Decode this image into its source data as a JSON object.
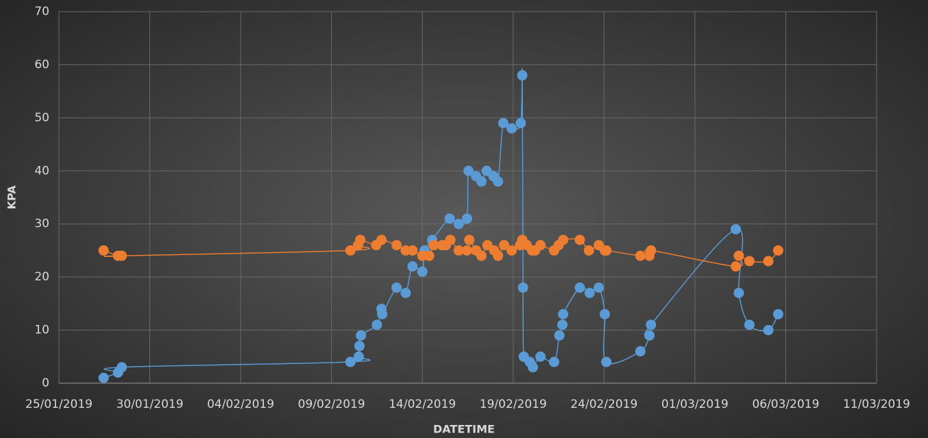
{
  "chart_data": {
    "type": "scatter-line",
    "xlabel": "DATETIME",
    "ylabel": "KPA",
    "xlim": [
      "2019-01-25",
      "2019-03-11"
    ],
    "xticks": [
      {
        "value": "2019-01-25",
        "label": "25/01/2019"
      },
      {
        "value": "2019-01-30",
        "label": "30/01/2019"
      },
      {
        "value": "2019-02-04",
        "label": "04/02/2019"
      },
      {
        "value": "2019-02-09",
        "label": "09/02/2019"
      },
      {
        "value": "2019-02-14",
        "label": "14/02/2019"
      },
      {
        "value": "2019-02-19",
        "label": "19/02/2019"
      },
      {
        "value": "2019-02-24",
        "label": "24/02/2019"
      },
      {
        "value": "2019-03-01",
        "label": "01/03/2019"
      },
      {
        "value": "2019-03-06",
        "label": "06/03/2019"
      },
      {
        "value": "2019-03-11",
        "label": "11/03/2019"
      }
    ],
    "ylim": [
      0,
      70
    ],
    "yticks": [
      0,
      10,
      20,
      30,
      40,
      50,
      60,
      70
    ],
    "grid": true,
    "series": [
      {
        "color": "#5b9bd5",
        "x": [
          "2019-01-27T11:00",
          "2019-01-28T06:00",
          "2019-01-28T11:00",
          "2019-02-10T01:00",
          "2019-02-10T12:00",
          "2019-02-10T13:00",
          "2019-02-10T15:00",
          "2019-02-11T12:00",
          "2019-02-11T18:00",
          "2019-02-11T19:00",
          "2019-02-12T14:00",
          "2019-02-13T02:00",
          "2019-02-13T11:00",
          "2019-02-14T00:00",
          "2019-02-14T03:00",
          "2019-02-14T13:00",
          "2019-02-15T12:00",
          "2019-02-16T00:00",
          "2019-02-16T11:00",
          "2019-02-16T13:00",
          "2019-02-16T23:00",
          "2019-02-17T06:00",
          "2019-02-17T13:00",
          "2019-02-17T22:00",
          "2019-02-18T04:00",
          "2019-02-18T11:00",
          "2019-02-18T22:00",
          "2019-02-19T10:00",
          "2019-02-19T12:00",
          "2019-02-19T13:00",
          "2019-02-19T14:00",
          "2019-02-19T22:00",
          "2019-02-20T02:00",
          "2019-02-20T12:00",
          "2019-02-21T06:00",
          "2019-02-21T13:00",
          "2019-02-21T17:00",
          "2019-02-21T18:00",
          "2019-02-22T16:00",
          "2019-02-23T05:00",
          "2019-02-23T17:00",
          "2019-02-24T01:00",
          "2019-02-24T03:00",
          "2019-02-26T00:00",
          "2019-02-26T12:00",
          "2019-02-26T14:00",
          "2019-03-03T06:00",
          "2019-03-03T10:00",
          "2019-03-04T00:00",
          "2019-03-05T01:00",
          "2019-03-05T14:00"
        ],
        "values": [
          1,
          2,
          3,
          4,
          5,
          7,
          9,
          11,
          14,
          13,
          18,
          17,
          22,
          21,
          25,
          27,
          31,
          30,
          31,
          40,
          39,
          38,
          40,
          39,
          38,
          49,
          48,
          49,
          58,
          18,
          5,
          4,
          3,
          5,
          4,
          9,
          11,
          13,
          18,
          17,
          18,
          13,
          4,
          6,
          9,
          11,
          29,
          17,
          11,
          10,
          13
        ]
      },
      {
        "color": "#ed7d31",
        "x": [
          "2019-01-27T11:00",
          "2019-01-28T06:00",
          "2019-01-28T11:00",
          "2019-02-10T01:00",
          "2019-02-10T11:00",
          "2019-02-10T14:00",
          "2019-02-11T11:00",
          "2019-02-11T18:00",
          "2019-02-12T14:00",
          "2019-02-13T02:00",
          "2019-02-13T11:00",
          "2019-02-14T00:00",
          "2019-02-14T09:00",
          "2019-02-14T15:00",
          "2019-02-15T02:00",
          "2019-02-15T07:00",
          "2019-02-15T13:00",
          "2019-02-16T00:00",
          "2019-02-16T11:00",
          "2019-02-16T14:00",
          "2019-02-16T23:00",
          "2019-02-17T06:00",
          "2019-02-17T14:00",
          "2019-02-17T23:00",
          "2019-02-18T04:00",
          "2019-02-18T12:00",
          "2019-02-18T22:00",
          "2019-02-19T09:00",
          "2019-02-19T12:00",
          "2019-02-19T18:00",
          "2019-02-20T01:00",
          "2019-02-20T05:00",
          "2019-02-20T12:00",
          "2019-02-21T06:00",
          "2019-02-21T12:00",
          "2019-02-21T18:00",
          "2019-02-22T16:00",
          "2019-02-23T04:00",
          "2019-02-23T17:00",
          "2019-02-24T01:00",
          "2019-02-24T03:00",
          "2019-02-26T00:00",
          "2019-02-26T12:00",
          "2019-02-26T14:00",
          "2019-03-03T06:00",
          "2019-03-03T10:00",
          "2019-03-04T00:00",
          "2019-03-05T01:00",
          "2019-03-05T14:00"
        ],
        "values": [
          25,
          24,
          24,
          25,
          26,
          27,
          26,
          27,
          26,
          25,
          25,
          24,
          24,
          26,
          26,
          26,
          27,
          25,
          25,
          27,
          25,
          24,
          26,
          25,
          24,
          26,
          25,
          26,
          27,
          26,
          25,
          25,
          26,
          25,
          26,
          27,
          27,
          25,
          26,
          25,
          25,
          24,
          24,
          25,
          22,
          24,
          23,
          23,
          25
        ]
      }
    ]
  }
}
